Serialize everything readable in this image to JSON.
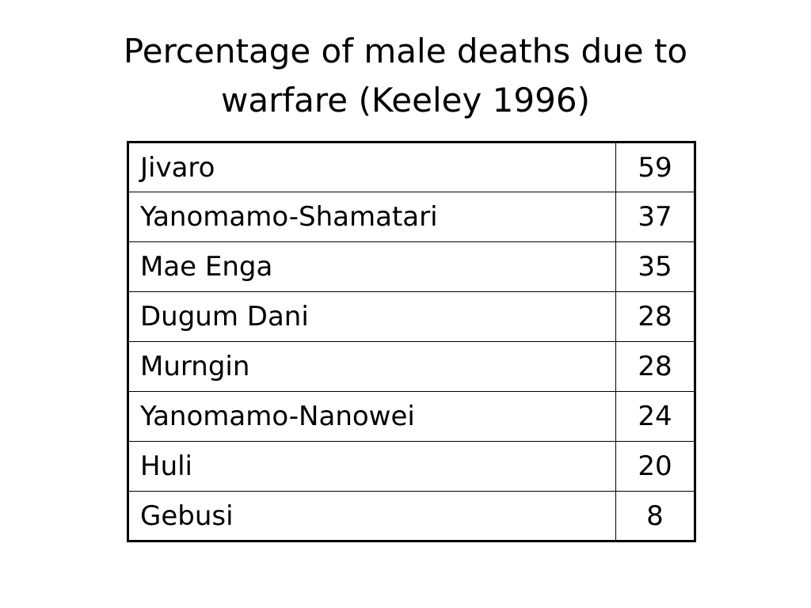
{
  "slide": {
    "title_line1": "Percentage of male deaths due to",
    "title_line2": "warfare (Keeley 1996)"
  },
  "table": {
    "rows": [
      {
        "name": "Jivaro",
        "value": "59"
      },
      {
        "name": "Yanomamo-Shamatari",
        "value": "37"
      },
      {
        "name": "Mae Enga",
        "value": "35"
      },
      {
        "name": "Dugum Dani",
        "value": "28"
      },
      {
        "name": "Murngin",
        "value": "28"
      },
      {
        "name": "Yanomamo-Nanowei",
        "value": "24"
      },
      {
        "name": "Huli",
        "value": "20"
      },
      {
        "name": "Gebusi",
        "value": "8"
      }
    ]
  }
}
